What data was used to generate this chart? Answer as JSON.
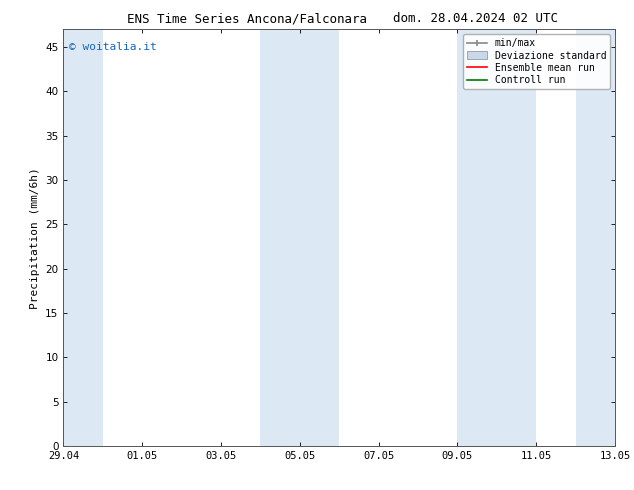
{
  "title_left": "ENS Time Series Ancona/Falconara",
  "title_right": "dom. 28.04.2024 02 UTC",
  "ylabel": "Precipitation (mm/6h)",
  "watermark": "© woitalia.it",
  "watermark_color": "#1565c0",
  "ylim": [
    0,
    47
  ],
  "yticks": [
    0,
    5,
    10,
    15,
    20,
    25,
    30,
    35,
    40,
    45
  ],
  "xtick_labels": [
    "29.04",
    "01.05",
    "03.05",
    "05.05",
    "07.05",
    "09.05",
    "11.05",
    "13.05"
  ],
  "background_color": "#ffffff",
  "plot_bg_color": "#ffffff",
  "band_color": "#dce9f5",
  "legend_items": [
    {
      "label": "min/max",
      "color": "#aaaaaa",
      "style": "errorbar"
    },
    {
      "label": "Deviazione standard",
      "color": "#c8d8ea",
      "style": "box"
    },
    {
      "label": "Ensemble mean run",
      "color": "#ff0000",
      "style": "line"
    },
    {
      "label": "Controll run",
      "color": "#007700",
      "style": "line"
    }
  ],
  "title_fontsize": 9,
  "axis_fontsize": 8,
  "tick_fontsize": 7.5,
  "watermark_fontsize": 8,
  "legend_fontsize": 7
}
